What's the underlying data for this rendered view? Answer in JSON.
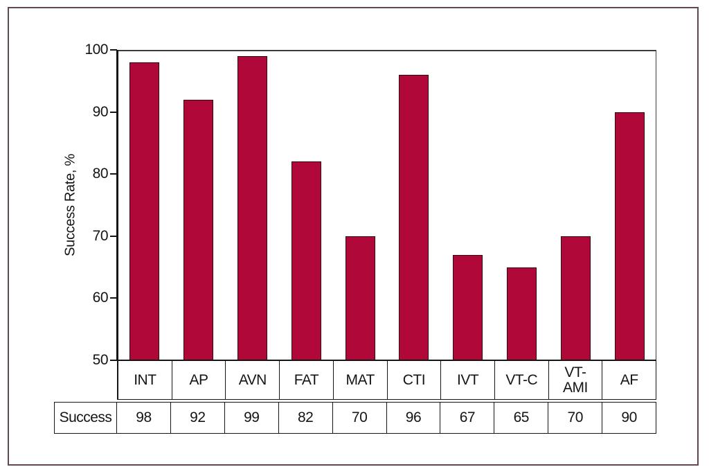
{
  "figure": {
    "background_color": "#ffffff",
    "frame_border_color": "#63474e"
  },
  "chart_data": {
    "type": "bar",
    "ylabel": "Success Rate, %",
    "categories": [
      "INT",
      "AP",
      "AVN",
      "FAT",
      "MAT",
      "CTI",
      "IVT",
      "VT-C",
      "VT-AMI",
      "AF"
    ],
    "category_display": [
      "INT",
      "AP",
      "AVN",
      "FAT",
      "MAT",
      "CTI",
      "IVT",
      "VT-C",
      "VT-\nAMI",
      "AF"
    ],
    "values": [
      98,
      92,
      99,
      82,
      70,
      96,
      67,
      65,
      70,
      90
    ],
    "ylim": [
      50,
      100
    ],
    "yticks": [
      50,
      60,
      70,
      80,
      90,
      100
    ],
    "grid": false,
    "bar_color": "#b00839",
    "bar_border_color": "#30060f",
    "table_row_label": "Success",
    "table_values": [
      98,
      92,
      99,
      82,
      70,
      96,
      67,
      65,
      70,
      90
    ]
  }
}
